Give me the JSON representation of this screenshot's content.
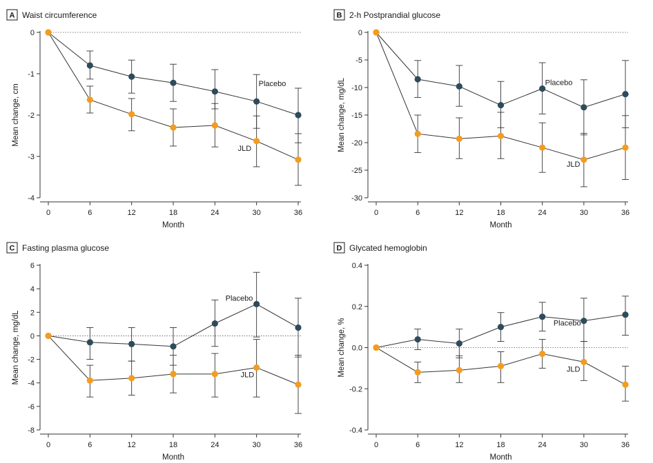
{
  "colors": {
    "placebo": "#2f4b5b",
    "jld": "#f39c1f",
    "line": "#333333",
    "axis": "#333333"
  },
  "chart_data": [
    {
      "type": "line",
      "panel": "A",
      "title": "Waist circumference",
      "xlabel": "Month",
      "ylabel": "Mean change, cm",
      "x": [
        0,
        6,
        12,
        18,
        24,
        30,
        36
      ],
      "xlim": [
        0,
        36
      ],
      "ylim": [
        -4,
        0
      ],
      "yticks": [
        0,
        -1,
        -2,
        -3,
        -4
      ],
      "reference_line": 0,
      "series": [
        {
          "name": "Placebo",
          "values": [
            0,
            -0.8,
            -1.07,
            -1.22,
            -1.43,
            -1.67,
            -2.0
          ],
          "lower": [
            0,
            -1.13,
            -1.47,
            -1.67,
            -1.85,
            -2.32,
            -2.67
          ],
          "upper": [
            0,
            -0.45,
            -0.67,
            -0.77,
            -0.9,
            -1.02,
            -1.35
          ]
        },
        {
          "name": "JLD",
          "values": [
            0,
            -1.63,
            -1.98,
            -2.3,
            -2.25,
            -2.63,
            -3.08
          ],
          "lower": [
            0,
            -1.95,
            -2.38,
            -2.75,
            -2.77,
            -3.25,
            -3.7
          ],
          "upper": [
            0,
            -1.3,
            -1.6,
            -1.85,
            -1.72,
            -2.02,
            -2.45
          ]
        }
      ]
    },
    {
      "type": "line",
      "panel": "B",
      "title": "2-h Postprandial glucose",
      "xlabel": "Month",
      "ylabel": "Mean change, mg/dL",
      "x": [
        0,
        6,
        12,
        18,
        24,
        30,
        36
      ],
      "xlim": [
        0,
        36
      ],
      "ylim": [
        -30,
        0
      ],
      "yticks": [
        0,
        -5,
        -10,
        -15,
        -20,
        -25,
        -30
      ],
      "reference_line": 0,
      "series": [
        {
          "name": "Placebo",
          "values": [
            0,
            -8.5,
            -9.8,
            -13.2,
            -10.2,
            -13.6,
            -11.2
          ],
          "lower": [
            0,
            -11.8,
            -13.4,
            -17.3,
            -14.8,
            -18.6,
            -17.3
          ],
          "upper": [
            0,
            -5.1,
            -6.0,
            -8.9,
            -5.5,
            -8.6,
            -5.1
          ]
        },
        {
          "name": "JLD",
          "values": [
            0,
            -18.4,
            -19.3,
            -18.8,
            -20.9,
            -23.1,
            -20.9
          ],
          "lower": [
            0,
            -21.8,
            -22.9,
            -22.9,
            -25.4,
            -28.0,
            -26.7
          ],
          "upper": [
            0,
            -15.0,
            -15.5,
            -14.5,
            -16.4,
            -18.3,
            -15.1
          ]
        }
      ]
    },
    {
      "type": "line",
      "panel": "C",
      "title": "Fasting plasma glucose",
      "xlabel": "Month",
      "ylabel": "Mean change, mg/dL",
      "x": [
        0,
        6,
        12,
        18,
        24,
        30,
        36
      ],
      "xlim": [
        0,
        36
      ],
      "ylim": [
        -8,
        6
      ],
      "yticks": [
        6,
        4,
        2,
        0,
        -2,
        -4,
        -6,
        -8
      ],
      "reference_line": 0,
      "series": [
        {
          "name": "Placebo",
          "values": [
            0,
            -0.55,
            -0.7,
            -0.9,
            1.05,
            2.7,
            0.7
          ],
          "lower": [
            0,
            -2.0,
            -2.15,
            -2.5,
            -0.9,
            -0.1,
            -1.8
          ],
          "upper": [
            0,
            0.7,
            0.7,
            0.7,
            3.05,
            5.4,
            3.2
          ]
        },
        {
          "name": "JLD",
          "values": [
            0,
            -3.8,
            -3.6,
            -3.25,
            -3.25,
            -2.7,
            -4.15
          ],
          "lower": [
            0,
            -5.2,
            -5.05,
            -4.85,
            -5.2,
            -5.2,
            -6.6
          ],
          "upper": [
            0,
            -2.5,
            -2.15,
            -1.65,
            -1.5,
            -0.3,
            -1.65
          ]
        }
      ]
    },
    {
      "type": "line",
      "panel": "D",
      "title": "Glycated hemoglobin",
      "xlabel": "Month",
      "ylabel": "Mean change, %",
      "x": [
        0,
        6,
        12,
        18,
        24,
        30,
        36
      ],
      "xlim": [
        0,
        36
      ],
      "ylim": [
        -0.4,
        0.4
      ],
      "yticks": [
        0.4,
        0.2,
        0,
        -0.2,
        -0.4
      ],
      "ytick_labels": [
        "0.4",
        "0.2",
        "0.0",
        "-0.2",
        "-0.4"
      ],
      "reference_line": 0,
      "series": [
        {
          "name": "Placebo",
          "values": [
            0,
            0.04,
            0.02,
            0.1,
            0.15,
            0.13,
            0.16
          ],
          "lower": [
            0,
            -0.01,
            -0.05,
            0.03,
            0.08,
            0.03,
            0.06
          ],
          "upper": [
            0,
            0.09,
            0.09,
            0.17,
            0.22,
            0.24,
            0.25
          ]
        },
        {
          "name": "JLD",
          "values": [
            0,
            -0.12,
            -0.11,
            -0.09,
            -0.03,
            -0.07,
            -0.18
          ],
          "lower": [
            0,
            -0.17,
            -0.17,
            -0.17,
            -0.1,
            -0.16,
            -0.26
          ],
          "upper": [
            0,
            -0.07,
            -0.04,
            -0.02,
            0.04,
            0.03,
            -0.09
          ]
        }
      ]
    }
  ]
}
